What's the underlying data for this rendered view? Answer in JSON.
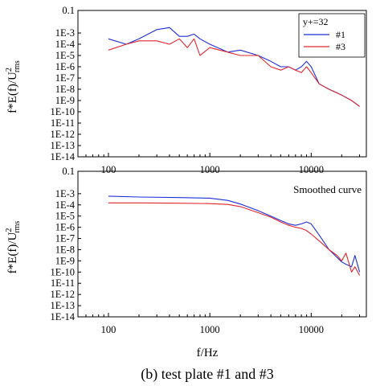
{
  "caption": "(b) test plate #1 and #3",
  "xlabel": "f/Hz",
  "colors": {
    "series1": "#1f2fd8",
    "series3": "#e0262e"
  },
  "chart_data": [
    {
      "type": "line",
      "scale": "log-log",
      "title": "",
      "ylabel": "f*E(f)/U",
      "ylabel_sup": "2",
      "ylabel_sub": "rms",
      "xlim": [
        50,
        35000
      ],
      "ylim": [
        1e-14,
        0.1
      ],
      "x_ticks": [
        "100",
        "1000",
        "10000"
      ],
      "y_ticks": [
        "0.1",
        "1E-3",
        "1E-4",
        "1E-5",
        "1E-6",
        "1E-7",
        "1E-8",
        "1E-9",
        "1E-10",
        "1E-11",
        "1E-12",
        "1E-13",
        "1E-14"
      ],
      "legend_title": "y+=32",
      "legend_position": "top-right",
      "series": [
        {
          "name": "#1",
          "color": "#1f2fd8",
          "x": [
            100,
            150,
            200,
            300,
            400,
            500,
            600,
            700,
            800,
            1000,
            1500,
            2000,
            3000,
            4000,
            5000,
            6000,
            7000,
            8000,
            9000,
            10000,
            12000,
            15000,
            20000,
            25000,
            30000
          ],
          "y": [
            0.0003,
            0.0001,
            0.0003,
            0.002,
            0.003,
            0.0005,
            0.0005,
            0.0008,
            0.0003,
            0.0001,
            2e-05,
            3e-05,
            1e-05,
            3e-06,
            1e-06,
            1e-06,
            5e-07,
            1e-06,
            3e-06,
            1e-06,
            3e-08,
            1e-08,
            3e-09,
            1e-09,
            3e-10
          ]
        },
        {
          "name": "#3",
          "color": "#e0262e",
          "x": [
            100,
            150,
            200,
            300,
            400,
            500,
            600,
            700,
            800,
            1000,
            1500,
            2000,
            3000,
            4000,
            5000,
            6000,
            7000,
            8000,
            9000,
            10000,
            12000,
            15000,
            20000,
            25000,
            30000
          ],
          "y": [
            3e-05,
            0.0001,
            0.0002,
            0.0002,
            0.0001,
            0.0003,
            5e-05,
            0.0003,
            1e-05,
            5e-05,
            2e-05,
            1e-05,
            1e-05,
            1e-06,
            5e-07,
            1e-06,
            5e-07,
            3e-07,
            1e-06,
            3e-07,
            3e-08,
            1e-08,
            3e-09,
            1e-09,
            3e-10
          ]
        }
      ]
    },
    {
      "type": "line",
      "scale": "log-log",
      "title": "",
      "ylabel": "f*E(f)/U",
      "ylabel_sup": "2",
      "ylabel_sub": "rms",
      "xlim": [
        50,
        35000
      ],
      "ylim": [
        1e-14,
        0.1
      ],
      "x_ticks": [
        "100",
        "1000",
        "10000"
      ],
      "y_ticks": [
        "0.1",
        "1E-3",
        "1E-4",
        "1E-5",
        "1E-6",
        "1E-7",
        "1E-8",
        "1E-9",
        "1E-10",
        "1E-11",
        "1E-12",
        "1E-13",
        "1E-14"
      ],
      "annotation": "Smoothed curve",
      "annotation_position": "top-right",
      "series": [
        {
          "name": "#1",
          "color": "#1f2fd8",
          "x": [
            100,
            200,
            500,
            1000,
            1500,
            2000,
            3000,
            4000,
            5000,
            6000,
            7000,
            8000,
            9000,
            10000,
            12000,
            15000,
            18000,
            20000,
            22000,
            25000,
            27000,
            30000
          ],
          "y": [
            0.0006,
            0.0005,
            0.00045,
            0.0004,
            0.00025,
            0.00012,
            3e-05,
            1e-05,
            4e-06,
            2e-06,
            1.5e-06,
            2e-06,
            3e-06,
            2e-06,
            2e-07,
            1e-08,
            2e-09,
            8e-10,
            5e-10,
            3e-10,
            3e-09,
            1e-10
          ]
        },
        {
          "name": "#3",
          "color": "#e0262e",
          "x": [
            100,
            200,
            500,
            1000,
            1500,
            2000,
            3000,
            4000,
            5000,
            6000,
            7000,
            8000,
            9000,
            10000,
            12000,
            15000,
            18000,
            20000,
            22000,
            25000,
            27000,
            30000
          ],
          "y": [
            0.00015,
            0.00015,
            0.00014,
            0.00013,
            0.00011,
            7e-05,
            2e-05,
            8e-06,
            3e-06,
            1.5e-06,
            1e-06,
            8e-07,
            5e-07,
            2.5e-07,
            6e-08,
            1e-08,
            3e-09,
            1e-09,
            5e-09,
            1e-10,
            3e-10,
            5e-11
          ]
        }
      ]
    }
  ]
}
